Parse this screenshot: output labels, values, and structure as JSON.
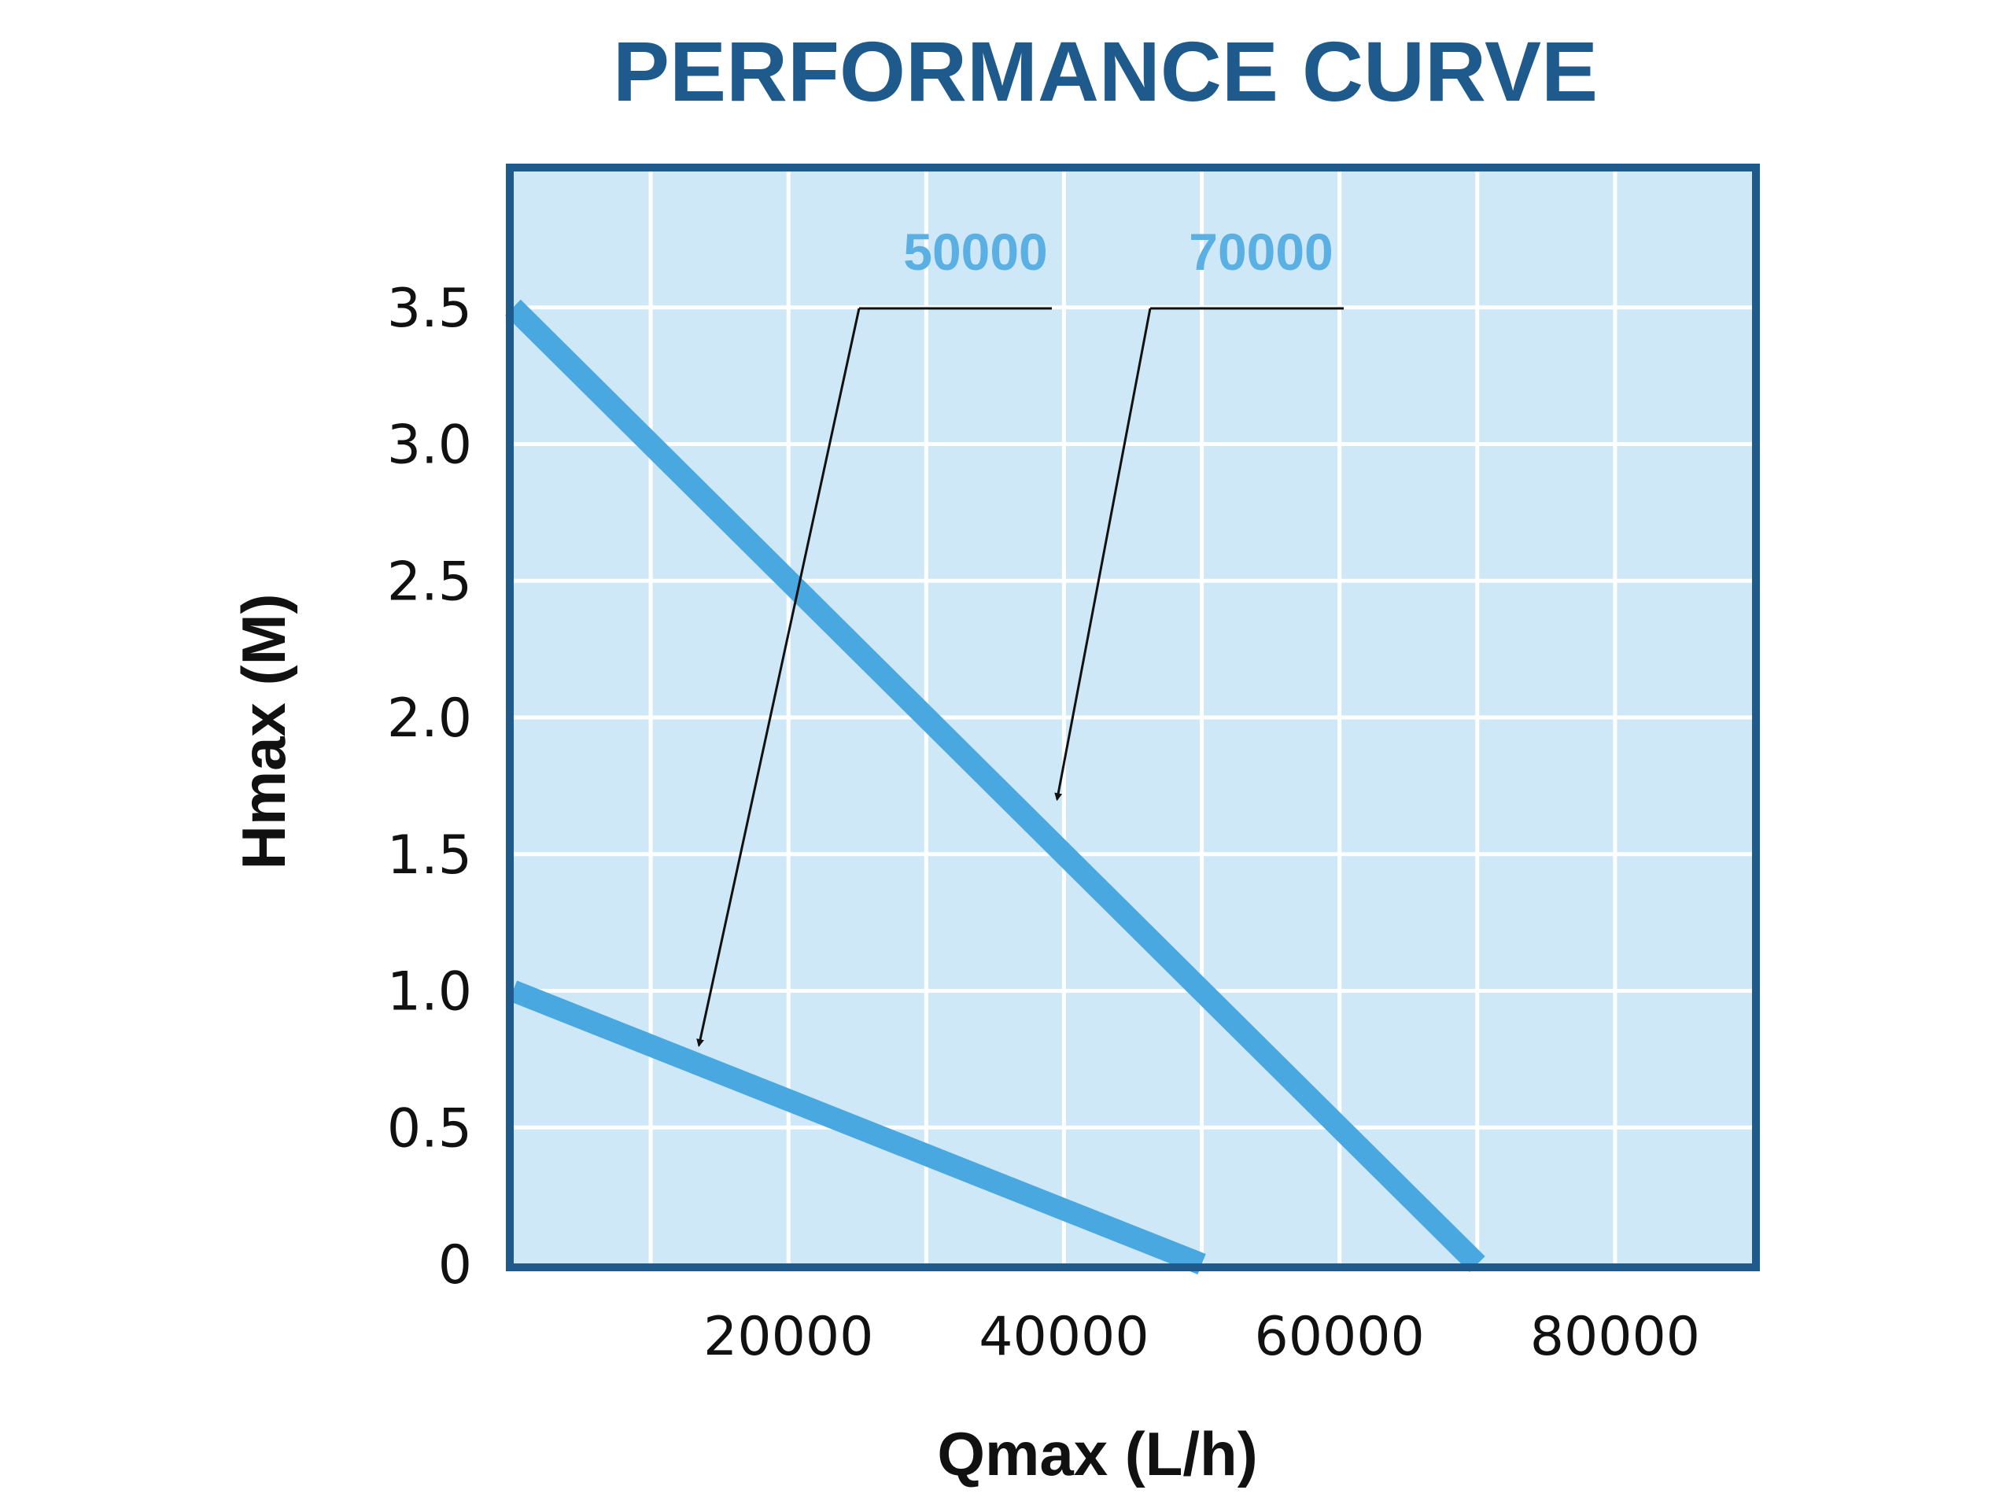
{
  "chart_data": {
    "type": "line",
    "title": "PERFORMANCE CURVE",
    "xlabel": "Qmax (L/h)",
    "ylabel": "Hmax (M)",
    "xlim": [
      0,
      90000
    ],
    "ylim": [
      0,
      4.0
    ],
    "x_ticks": [
      20000,
      40000,
      60000,
      80000
    ],
    "x_tick_labels": [
      "20000",
      "40000",
      "60000",
      "80000"
    ],
    "y_ticks": [
      0,
      0.5,
      1.0,
      1.5,
      2.0,
      2.5,
      3.0,
      3.5
    ],
    "y_tick_labels": [
      "0",
      "0.5",
      "1.0",
      "1.5",
      "2.0",
      "2.5",
      "3.0",
      "3.5"
    ],
    "grid": true,
    "series": [
      {
        "name": "50000",
        "x": [
          0,
          50000
        ],
        "y": [
          1.0,
          0
        ],
        "label_arrow_target": {
          "x": 13500,
          "y": 0.8
        }
      },
      {
        "name": "70000",
        "x": [
          0,
          70000
        ],
        "y": [
          3.5,
          0
        ],
        "label_arrow_target": {
          "x": 39500,
          "y": 1.7
        }
      }
    ],
    "colors": {
      "plot_background": "#cfe8f8",
      "plot_border": "#1e5a8c",
      "grid": "#ffffff",
      "series_line": "#4aa8e0",
      "series_label": "#5ab0e2",
      "title": "#1e5a8c",
      "annotation": "#111111"
    }
  }
}
